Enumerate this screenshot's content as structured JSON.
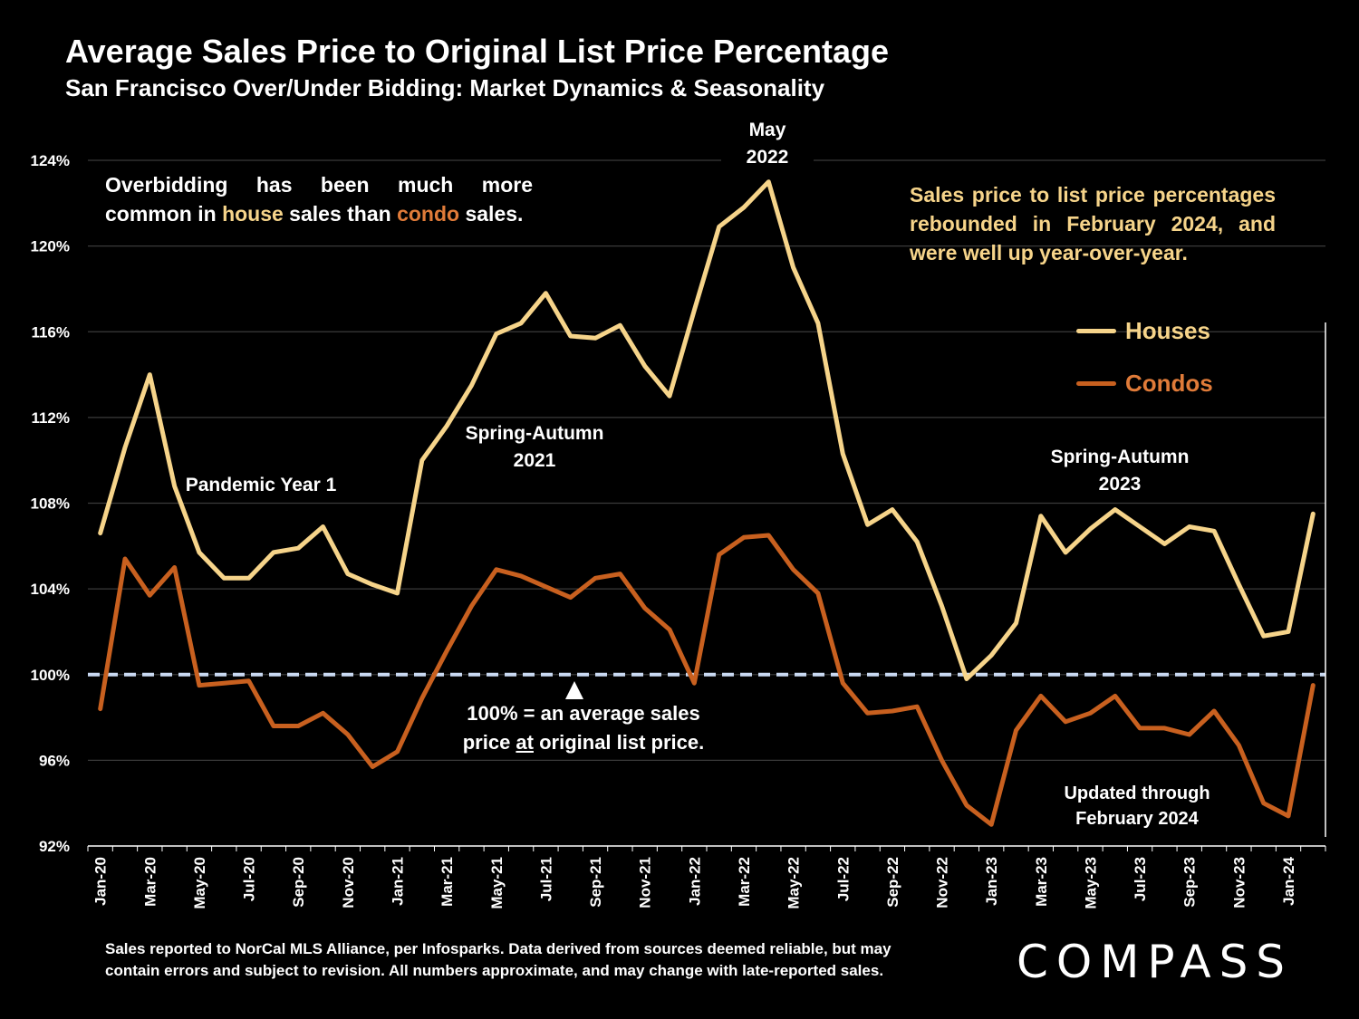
{
  "title": "Average Sales Price to Original List Price Percentage",
  "subtitle": "San Francisco Over/Under Bidding: Market Dynamics & Seasonality",
  "notes": {
    "left_pre": "Overbidding has been much more common in ",
    "left_house": "house",
    "left_mid": " sales than ",
    "left_condo": "condo",
    "left_post": " sales.",
    "right": "Sales price to list price percentages rebounded in February 2024, and were well up year-over-year."
  },
  "annotations": {
    "pandemic": "Pandemic Year 1",
    "spring2021_line1": "Spring-Autumn",
    "spring2021_line2": "2021",
    "may2022_line1": "May",
    "may2022_line2": "2022",
    "spring2023_line1": "Spring-Autumn",
    "spring2023_line2": "2023",
    "updated_line1": "Updated through",
    "updated_line2": "February 2024",
    "baseline_line1": "100% = an average sales",
    "baseline_pre": "price ",
    "baseline_at": "at",
    "baseline_post": " original list price."
  },
  "footer": {
    "line1": "Sales reported to NorCal MLS Alliance, per Infosparks. Data derived from sources deemed reliable, but may",
    "line2": "contain errors and subject to revision. All numbers approximate, and may change with late-reported sales."
  },
  "logo": "COMPASS",
  "colors": {
    "houses": "#f6d48a",
    "condos": "#c8601f",
    "baseline": "#c9d9f2",
    "grid": "#3a3a3a",
    "background": "#000000"
  },
  "chart_data": {
    "type": "line",
    "ylim": [
      92,
      124
    ],
    "y_ticks": [
      92,
      96,
      100,
      104,
      108,
      112,
      116,
      120,
      124
    ],
    "y_tick_labels": [
      "92%",
      "96%",
      "100%",
      "104%",
      "108%",
      "112%",
      "116%",
      "120%",
      "124%"
    ],
    "grid": true,
    "legend_position": "right",
    "baseline": 100,
    "x": [
      "Jan-20",
      "Feb-20",
      "Mar-20",
      "Apr-20",
      "May-20",
      "Jun-20",
      "Jul-20",
      "Aug-20",
      "Sep-20",
      "Oct-20",
      "Nov-20",
      "Dec-20",
      "Jan-21",
      "Feb-21",
      "Mar-21",
      "Apr-21",
      "May-21",
      "Jun-21",
      "Jul-21",
      "Aug-21",
      "Sep-21",
      "Oct-21",
      "Nov-21",
      "Dec-21",
      "Jan-22",
      "Feb-22",
      "Mar-22",
      "Apr-22",
      "May-22",
      "Jun-22",
      "Jul-22",
      "Aug-22",
      "Sep-22",
      "Oct-22",
      "Nov-22",
      "Dec-22",
      "Jan-23",
      "Feb-23",
      "Mar-23",
      "Apr-23",
      "May-23",
      "Jun-23",
      "Jul-23",
      "Aug-23",
      "Sep-23",
      "Oct-23",
      "Nov-23",
      "Dec-23",
      "Jan-24",
      "Feb-24"
    ],
    "x_tick_labels": [
      "Jan-20",
      "Mar-20",
      "May-20",
      "Jul-20",
      "Sep-20",
      "Nov-20",
      "Jan-21",
      "Mar-21",
      "May-21",
      "Jul-21",
      "Sep-21",
      "Nov-21",
      "Jan-22",
      "Mar-22",
      "May-22",
      "Jul-22",
      "Sep-22",
      "Nov-22",
      "Jan-23",
      "Mar-23",
      "May-23",
      "Jul-23",
      "Sep-23",
      "Nov-23",
      "Jan-24"
    ],
    "series": [
      {
        "name": "Houses",
        "values": [
          106.6,
          110.6,
          114.0,
          108.8,
          105.7,
          104.5,
          104.5,
          105.7,
          105.9,
          106.9,
          104.7,
          104.2,
          103.8,
          110.0,
          111.6,
          113.5,
          115.9,
          116.4,
          117.8,
          115.8,
          115.7,
          116.3,
          114.4,
          113.0,
          117.0,
          120.9,
          121.8,
          123.0,
          119.0,
          116.4,
          110.3,
          107.0,
          107.7,
          106.2,
          103.2,
          99.8,
          100.9,
          102.4,
          107.4,
          105.7,
          106.8,
          107.7,
          106.9,
          106.1,
          106.9,
          106.7,
          104.2,
          101.8,
          102.0,
          107.5
        ]
      },
      {
        "name": "Condos",
        "values": [
          98.4,
          105.4,
          103.7,
          105.0,
          99.5,
          99.6,
          99.7,
          97.6,
          97.6,
          98.2,
          97.2,
          95.7,
          96.4,
          98.9,
          101.1,
          103.2,
          104.9,
          104.6,
          104.1,
          103.6,
          104.5,
          104.7,
          103.1,
          102.1,
          99.6,
          105.6,
          106.4,
          106.5,
          104.9,
          103.8,
          99.6,
          98.2,
          98.3,
          98.5,
          96.0,
          93.9,
          93.0,
          97.4,
          99.0,
          97.8,
          98.2,
          99.0,
          97.5,
          97.5,
          97.2,
          98.3,
          96.7,
          94.0,
          93.4,
          99.5
        ]
      }
    ]
  }
}
